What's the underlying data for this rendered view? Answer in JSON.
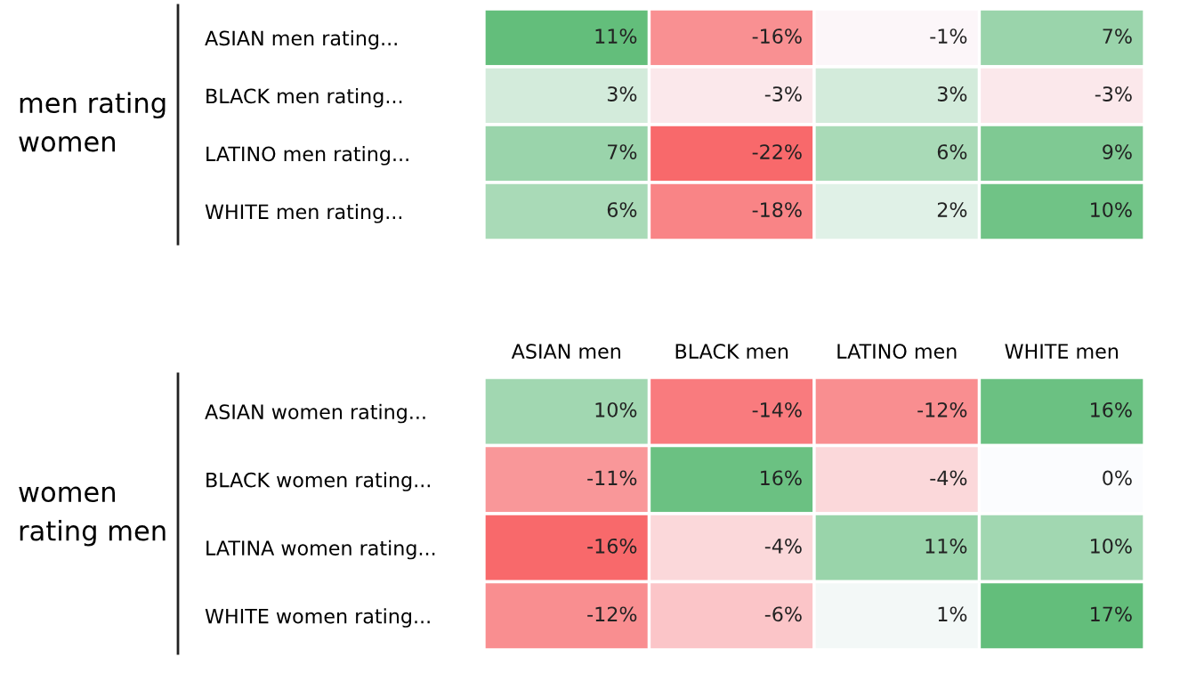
{
  "chart_data": [
    {
      "type": "heatmap",
      "ylabel": "men rating women",
      "categories": [
        null,
        null,
        null,
        null
      ],
      "y_categories": [
        "ASIAN men rating...",
        "BLACK men rating...",
        "LATINO men rating...",
        "WHITE men rating..."
      ],
      "cells": [
        [
          11,
          -16,
          -1,
          7
        ],
        [
          3,
          -3,
          3,
          -3
        ],
        [
          7,
          -22,
          6,
          9
        ],
        [
          6,
          -18,
          2,
          10
        ]
      ],
      "cell_labels": [
        [
          "11%",
          "-16%",
          "-1%",
          "7%"
        ],
        [
          "3%",
          "-3%",
          "3%",
          "-3%"
        ],
        [
          "7%",
          "-22%",
          "6%",
          "9%"
        ],
        [
          "6%",
          "-18%",
          "2%",
          "10%"
        ]
      ],
      "colors": [
        "#f8696b",
        "#fcfcff",
        "#63be7b"
      ]
    },
    {
      "type": "heatmap",
      "ylabel": "women rating men",
      "categories": [
        "ASIAN men",
        "BLACK men",
        "LATINO men",
        "WHITE men"
      ],
      "y_categories": [
        "ASIAN women rating...",
        "BLACK women rating...",
        "LATINA women rating...",
        "WHITE women rating..."
      ],
      "cells": [
        [
          10,
          -14,
          -12,
          16
        ],
        [
          -11,
          16,
          -4,
          0
        ],
        [
          -16,
          -4,
          11,
          10
        ],
        [
          -12,
          -6,
          1,
          17
        ]
      ],
      "cell_labels": [
        [
          "10%",
          "-14%",
          "-12%",
          "16%"
        ],
        [
          "-11%",
          "16%",
          "-4%",
          "0%"
        ],
        [
          "-16%",
          "-4%",
          "11%",
          "10%"
        ],
        [
          "-12%",
          "-6%",
          "1%",
          "17%"
        ]
      ],
      "colors": [
        "#f8696b",
        "#fcfcff",
        "#63be7b"
      ]
    }
  ]
}
